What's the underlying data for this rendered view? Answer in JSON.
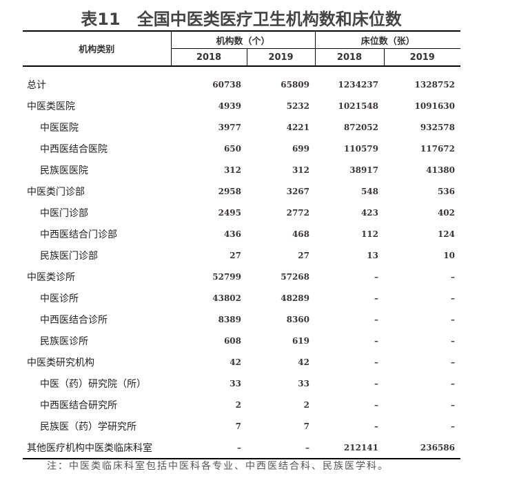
{
  "title": "表11　全国中医类医疗卫生机构数和床位数",
  "header": {
    "category": "机构类别",
    "group1": "机构数（个）",
    "group2": "床位数（张）",
    "years": [
      "2018",
      "2019",
      "2018",
      "2019"
    ]
  },
  "rows": [
    {
      "label": "总计",
      "sub": false,
      "values": [
        "60738",
        "65809",
        "1234237",
        "1328752"
      ]
    },
    {
      "label": "中医类医院",
      "sub": false,
      "values": [
        "4939",
        "5232",
        "1021548",
        "1091630"
      ]
    },
    {
      "label": "中医医院",
      "sub": true,
      "values": [
        "3977",
        "4221",
        "872052",
        "932578"
      ]
    },
    {
      "label": "中西医结合医院",
      "sub": true,
      "values": [
        "650",
        "699",
        "110579",
        "117672"
      ]
    },
    {
      "label": "民族医医院",
      "sub": true,
      "values": [
        "312",
        "312",
        "38917",
        "41380"
      ]
    },
    {
      "label": "中医类门诊部",
      "sub": false,
      "values": [
        "2958",
        "3267",
        "548",
        "536"
      ]
    },
    {
      "label": "中医门诊部",
      "sub": true,
      "values": [
        "2495",
        "2772",
        "423",
        "402"
      ]
    },
    {
      "label": "中西医结合门诊部",
      "sub": true,
      "values": [
        "436",
        "468",
        "112",
        "124"
      ]
    },
    {
      "label": "民族医门诊部",
      "sub": true,
      "values": [
        "27",
        "27",
        "13",
        "10"
      ]
    },
    {
      "label": "中医类诊所",
      "sub": false,
      "values": [
        "52799",
        "57268",
        "–",
        "–"
      ]
    },
    {
      "label": "中医诊所",
      "sub": true,
      "values": [
        "43802",
        "48289",
        "–",
        "–"
      ]
    },
    {
      "label": "中西医结合诊所",
      "sub": true,
      "values": [
        "8389",
        "8360",
        "–",
        "–"
      ]
    },
    {
      "label": "民族医诊所",
      "sub": true,
      "values": [
        "608",
        "619",
        "–",
        "–"
      ]
    },
    {
      "label": "中医类研究机构",
      "sub": false,
      "values": [
        "42",
        "42",
        "–",
        "–"
      ]
    },
    {
      "label": "中医（药）研究院（所）",
      "sub": true,
      "values": [
        "33",
        "33",
        "–",
        "–"
      ]
    },
    {
      "label": "中西医结合研究所",
      "sub": true,
      "values": [
        "2",
        "2",
        "–",
        "–"
      ]
    },
    {
      "label": "民族医（药）学研究所",
      "sub": true,
      "values": [
        "7",
        "7",
        "–",
        "–"
      ]
    },
    {
      "label": "其他医疗机构中医类临床科室",
      "sub": false,
      "values": [
        "–",
        "–",
        "212141",
        "236586"
      ]
    }
  ],
  "note": "注：中医类临床科室包括中医科各专业、中西医结合科、民族医学科。"
}
